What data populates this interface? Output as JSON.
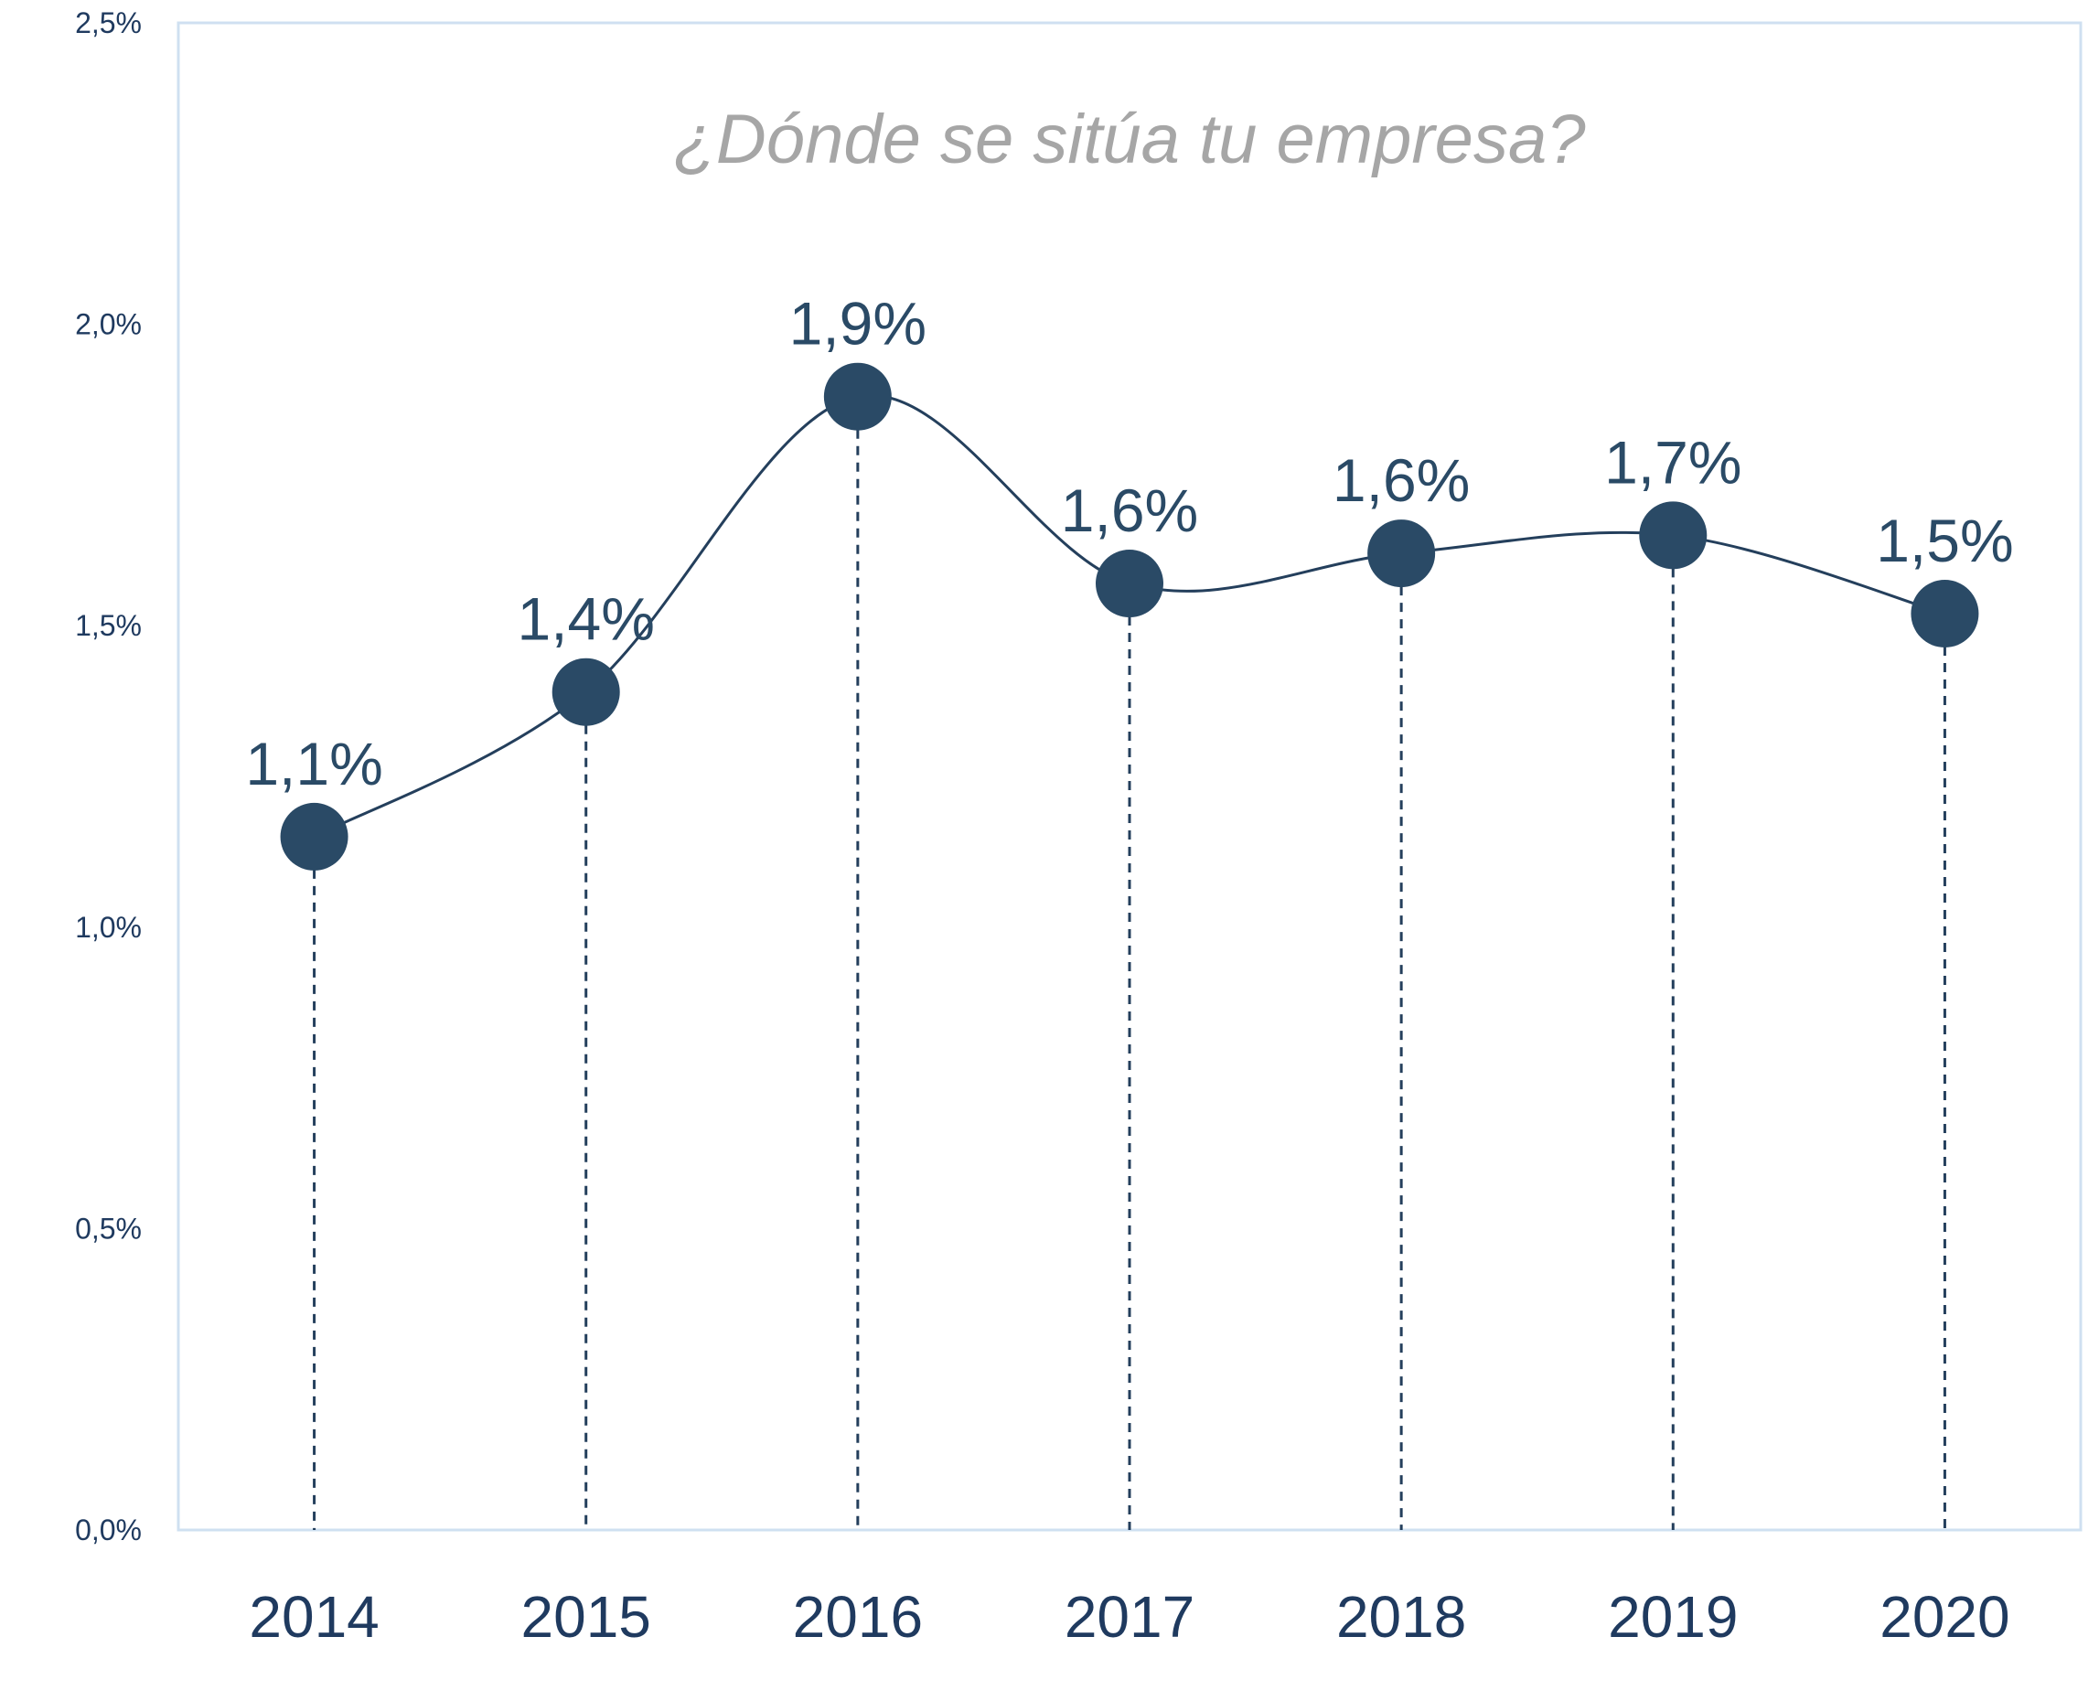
{
  "chart_data": {
    "type": "line",
    "title": "¿Dónde se sitúa tu empresa?",
    "categories": [
      "2014",
      "2015",
      "2016",
      "2017",
      "2018",
      "2019",
      "2020"
    ],
    "values": [
      1.15,
      1.39,
      1.88,
      1.57,
      1.62,
      1.65,
      1.52
    ],
    "data_labels": [
      "1,1%",
      "1,4%",
      "1,9%",
      "1,6%",
      "1,6%",
      "1,7%",
      "1,5%"
    ],
    "y_ticks": [
      {
        "value": 0.0,
        "label": "0,0%"
      },
      {
        "value": 0.5,
        "label": "0,5%"
      },
      {
        "value": 1.0,
        "label": "1,0%"
      },
      {
        "value": 1.5,
        "label": "1,5%"
      },
      {
        "value": 2.0,
        "label": "2,0%"
      },
      {
        "value": 2.5,
        "label": "2,5%"
      }
    ],
    "ylim": [
      0,
      2.5
    ],
    "grid": false,
    "smooth": true,
    "drop_lines": "dashed",
    "colors": {
      "line": "#243f5c",
      "marker": "#2a4a66",
      "title": "#a6a6a6",
      "axis_text": "#1f3a5f",
      "frame": "#cfe0f1"
    }
  }
}
